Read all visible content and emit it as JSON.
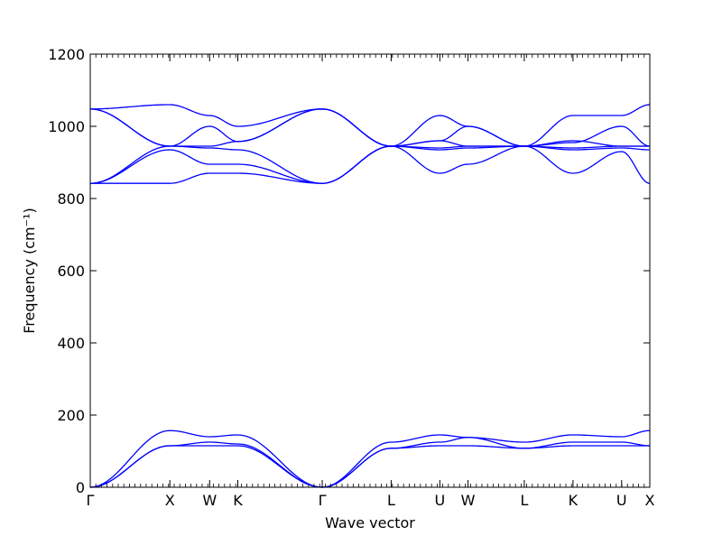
{
  "chart_data": {
    "type": "line",
    "title": "",
    "xlabel": "Wave vector",
    "ylabel": "Frequency (cm⁻¹)",
    "ylim": [
      0,
      1200
    ],
    "yticks": [
      0,
      200,
      400,
      600,
      800,
      1000,
      1200
    ],
    "grid": false,
    "legend": "none",
    "line_color": "#0000ff",
    "x_ticks": [
      {
        "label": "Γ",
        "x": 0.0
      },
      {
        "label": "X",
        "x": 1.0
      },
      {
        "label": "W",
        "x": 1.5
      },
      {
        "label": "K",
        "x": 1.854
      },
      {
        "label": "Γ",
        "x": 2.915
      },
      {
        "label": "L",
        "x": 3.781
      },
      {
        "label": "U",
        "x": 4.393
      },
      {
        "label": "W",
        "x": 4.747
      },
      {
        "label": "L",
        "x": 5.454
      },
      {
        "label": "K",
        "x": 6.066
      },
      {
        "label": "U",
        "x": 6.677
      },
      {
        "label": "X",
        "x": 7.031
      }
    ],
    "series": [
      {
        "values": [
          [
            0,
            0
          ],
          [
            1,
            115
          ],
          [
            1.5,
            115
          ],
          [
            1.854,
            115
          ],
          [
            2.915,
            0
          ],
          [
            3.781,
            108
          ],
          [
            4.393,
            115
          ],
          [
            4.747,
            115
          ],
          [
            5.454,
            108
          ],
          [
            6.066,
            115
          ],
          [
            6.677,
            115
          ],
          [
            7.031,
            115
          ]
        ]
      },
      {
        "values": [
          [
            0,
            0
          ],
          [
            1,
            115
          ],
          [
            1.5,
            125
          ],
          [
            1.854,
            120
          ],
          [
            2.915,
            0
          ],
          [
            3.781,
            108
          ],
          [
            4.393,
            125
          ],
          [
            4.747,
            138
          ],
          [
            5.454,
            108
          ],
          [
            6.066,
            125
          ],
          [
            6.677,
            125
          ],
          [
            7.031,
            115
          ]
        ]
      },
      {
        "values": [
          [
            0,
            0
          ],
          [
            1,
            157
          ],
          [
            1.5,
            140
          ],
          [
            1.854,
            145
          ],
          [
            2.915,
            0
          ],
          [
            3.781,
            125
          ],
          [
            4.393,
            145
          ],
          [
            4.747,
            138
          ],
          [
            5.454,
            125
          ],
          [
            6.066,
            145
          ],
          [
            6.677,
            140
          ],
          [
            7.031,
            157
          ]
        ]
      },
      {
        "values": [
          [
            0,
            842
          ],
          [
            1,
            842
          ],
          [
            1.5,
            870
          ],
          [
            1.854,
            870
          ],
          [
            2.915,
            842
          ],
          [
            3.781,
            945
          ],
          [
            4.393,
            870
          ],
          [
            4.747,
            895
          ],
          [
            5.454,
            945
          ],
          [
            6.066,
            870
          ],
          [
            6.677,
            930
          ],
          [
            7.031,
            842
          ]
        ]
      },
      {
        "values": [
          [
            0,
            842
          ],
          [
            1,
            935
          ],
          [
            1.5,
            895
          ],
          [
            1.854,
            895
          ],
          [
            2.915,
            842
          ],
          [
            3.781,
            945
          ],
          [
            4.393,
            935
          ],
          [
            4.747,
            940
          ],
          [
            5.454,
            945
          ],
          [
            6.066,
            935
          ],
          [
            6.677,
            940
          ],
          [
            7.031,
            935
          ]
        ]
      },
      {
        "values": [
          [
            0,
            842
          ],
          [
            1,
            945
          ],
          [
            1.5,
            940
          ],
          [
            1.854,
            935
          ],
          [
            2.915,
            842
          ],
          [
            3.781,
            945
          ],
          [
            4.393,
            940
          ],
          [
            4.747,
            945
          ],
          [
            5.454,
            945
          ],
          [
            6.066,
            940
          ],
          [
            6.677,
            945
          ],
          [
            7.031,
            945
          ]
        ]
      },
      {
        "values": [
          [
            0,
            1048
          ],
          [
            1,
            945
          ],
          [
            1.5,
            945
          ],
          [
            1.854,
            958
          ],
          [
            2.915,
            1048
          ],
          [
            3.781,
            945
          ],
          [
            4.393,
            960
          ],
          [
            4.747,
            945
          ],
          [
            5.454,
            945
          ],
          [
            6.066,
            960
          ],
          [
            6.677,
            945
          ],
          [
            7.031,
            945
          ]
        ]
      },
      {
        "values": [
          [
            0,
            1048
          ],
          [
            1,
            945
          ],
          [
            1.5,
            1000
          ],
          [
            1.854,
            958
          ],
          [
            2.915,
            1048
          ],
          [
            3.781,
            945
          ],
          [
            4.393,
            960
          ],
          [
            4.747,
            1000
          ],
          [
            5.454,
            945
          ],
          [
            6.066,
            955
          ],
          [
            6.677,
            1000
          ],
          [
            7.031,
            945
          ]
        ]
      },
      {
        "values": [
          [
            0,
            1048
          ],
          [
            1,
            1060
          ],
          [
            1.5,
            1030
          ],
          [
            1.854,
            1000
          ],
          [
            2.915,
            1048
          ],
          [
            3.781,
            945
          ],
          [
            4.393,
            1030
          ],
          [
            4.747,
            1000
          ],
          [
            5.454,
            945
          ],
          [
            6.066,
            1030
          ],
          [
            6.677,
            1030
          ],
          [
            7.031,
            1060
          ]
        ]
      }
    ]
  }
}
